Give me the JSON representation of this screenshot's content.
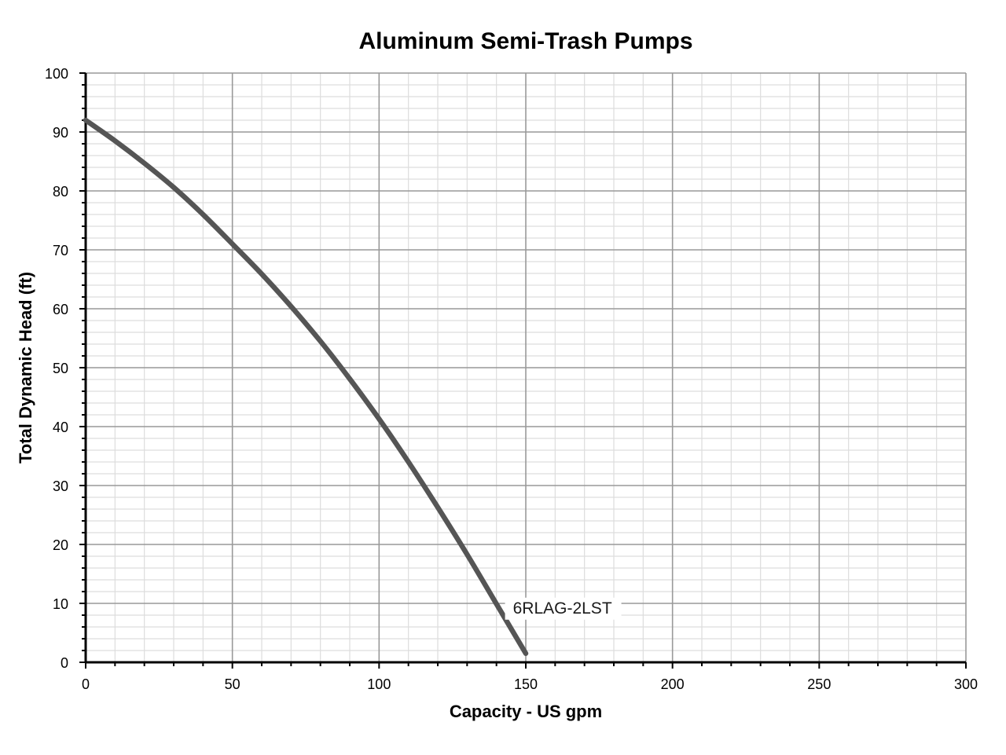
{
  "chart_data": {
    "type": "line",
    "title": "Aluminum Semi-Trash Pumps",
    "xlabel": "Capacity - US gpm",
    "ylabel": "Total Dynamic Head (ft)",
    "xlim": [
      0,
      300
    ],
    "ylim": [
      0,
      100
    ],
    "x_ticks": [
      0,
      50,
      100,
      150,
      200,
      250,
      300
    ],
    "y_ticks": [
      0,
      10,
      20,
      30,
      40,
      50,
      60,
      70,
      80,
      90,
      100
    ],
    "x_tick_labels": [
      "0",
      "50",
      "100",
      "150",
      "200",
      "250",
      "300"
    ],
    "y_tick_labels": [
      "0",
      "10",
      "20",
      "30",
      "40",
      "50",
      "60",
      "70",
      "80",
      "90",
      "100"
    ],
    "major_grid": true,
    "minor_grid": true,
    "series": [
      {
        "name": "6RLAG-2LST",
        "color": "#555555",
        "x": [
          0,
          10,
          20,
          30,
          40,
          50,
          60,
          70,
          80,
          90,
          100,
          110,
          120,
          130,
          140,
          150
        ],
        "y": [
          92,
          88.5,
          84.7,
          80.6,
          76,
          71,
          65.9,
          60.4,
          54.5,
          48.1,
          41.3,
          34,
          26.3,
          18.3,
          9.9,
          1.5
        ]
      }
    ],
    "colors": {
      "axis": "#000000",
      "major_grid": "#999999",
      "minor_grid": "#dddddd"
    }
  }
}
